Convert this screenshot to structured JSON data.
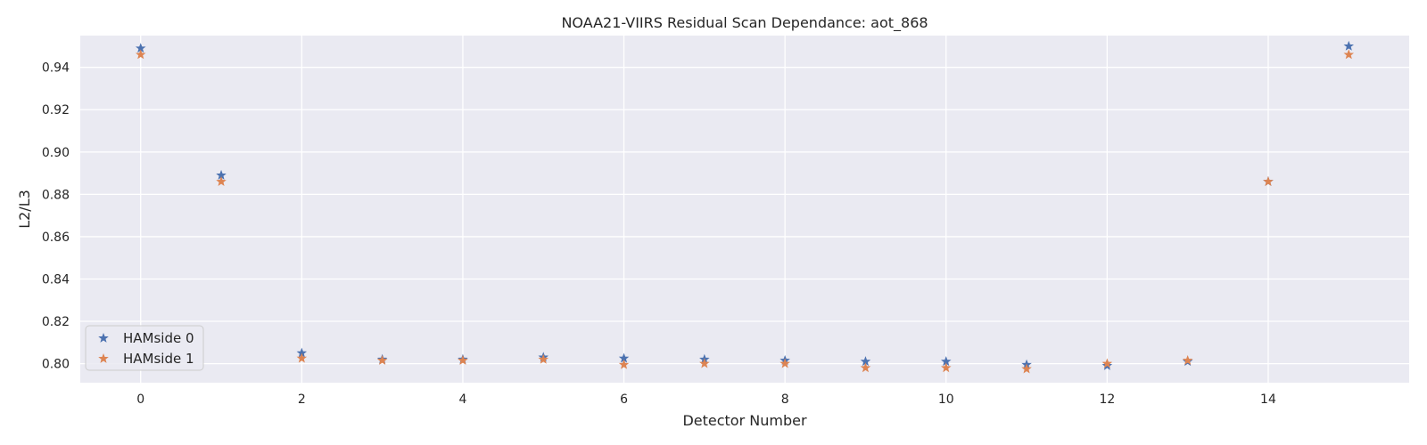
{
  "chart_data": {
    "type": "scatter",
    "title": "NOAA21-VIIRS Residual Scan Dependance: aot_868",
    "xlabel": "Detector Number",
    "ylabel": "L2/L3",
    "xlim": [
      -0.75,
      15.75
    ],
    "ylim": [
      0.791,
      0.955
    ],
    "xticks": [
      0,
      2,
      4,
      6,
      8,
      10,
      12,
      14
    ],
    "yticks": [
      0.8,
      0.82,
      0.84,
      0.86,
      0.88,
      0.9,
      0.92,
      0.94
    ],
    "xtick_labels": [
      "0",
      "2",
      "4",
      "6",
      "8",
      "10",
      "12",
      "14"
    ],
    "ytick_labels": [
      "0.80",
      "0.82",
      "0.84",
      "0.86",
      "0.88",
      "0.90",
      "0.92",
      "0.94"
    ],
    "grid": true,
    "legend_position": "lower-left",
    "marker": "star",
    "background_color": "#eaeaf2",
    "grid_color": "#ffffff",
    "series": [
      {
        "name": "HAMside 0",
        "color": "#4c72b0",
        "x": [
          0,
          1,
          2,
          3,
          4,
          5,
          6,
          7,
          8,
          9,
          10,
          11,
          12,
          13,
          14,
          15
        ],
        "values": [
          0.949,
          0.889,
          0.805,
          0.802,
          0.802,
          0.803,
          0.8025,
          0.802,
          0.8015,
          0.801,
          0.801,
          0.7995,
          0.799,
          0.801,
          0.886,
          0.95
        ]
      },
      {
        "name": "HAMside 1",
        "color": "#dd8452",
        "x": [
          0,
          1,
          2,
          3,
          4,
          5,
          6,
          7,
          8,
          9,
          10,
          11,
          12,
          13,
          14,
          15
        ],
        "values": [
          0.946,
          0.886,
          0.8025,
          0.8015,
          0.8015,
          0.802,
          0.7995,
          0.8,
          0.8,
          0.798,
          0.798,
          0.7975,
          0.8,
          0.8015,
          0.886,
          0.946
        ]
      }
    ]
  }
}
